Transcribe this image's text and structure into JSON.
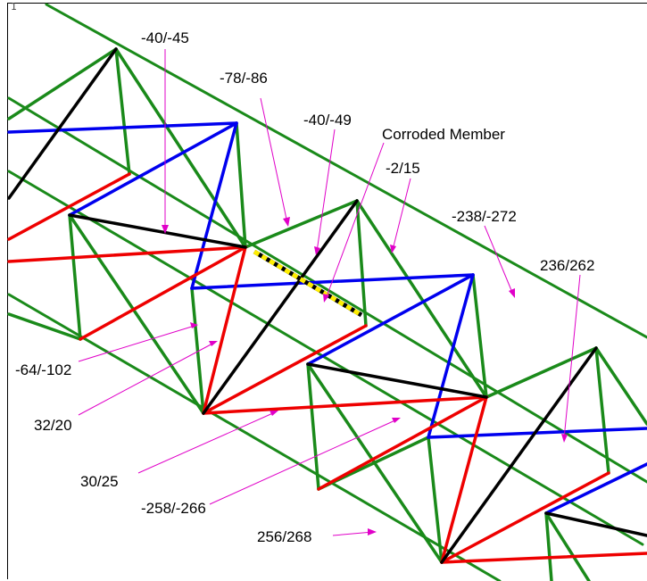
{
  "viewport_number": "1",
  "colors": {
    "chord": "#1a8a1a",
    "diagonal_black": "#000000",
    "diagonal_blue": "#0000ee",
    "diagonal_red": "#ee0000",
    "corroded": "#ffee00",
    "leader": "#e000c8"
  },
  "labels": {
    "l1": "-40/-45",
    "l2": "-78/-86",
    "l3": "-40/-49",
    "l4": "Corroded Member",
    "l5": "-2/15",
    "l6": "-238/-272",
    "l7": "236/262",
    "l8": "-64/-102",
    "l9": "32/20",
    "l10": "30/25",
    "l11": "-258/-266",
    "l12": "256/268"
  }
}
